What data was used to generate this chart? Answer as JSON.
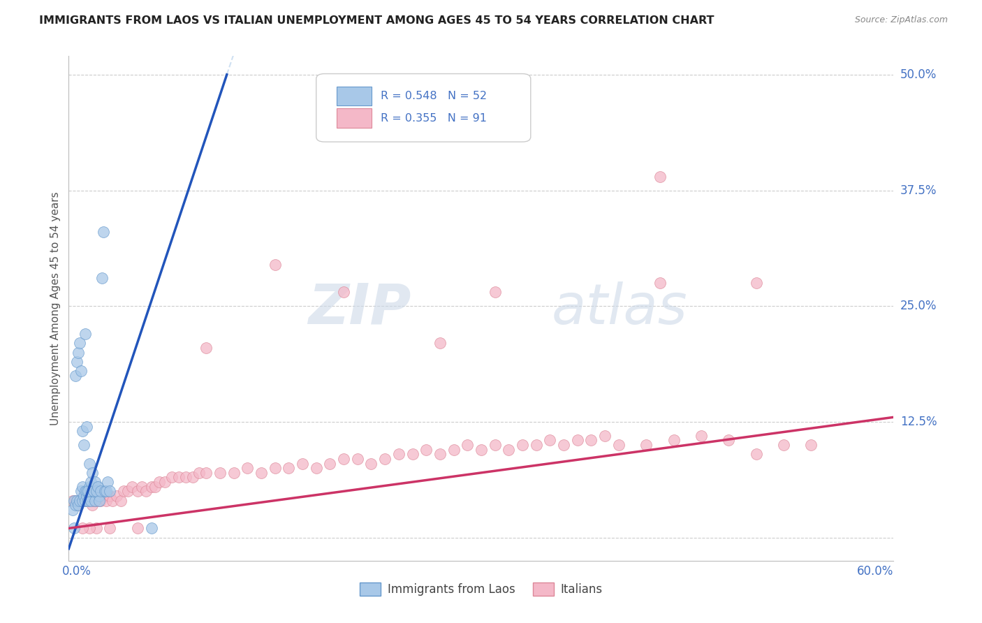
{
  "title": "IMMIGRANTS FROM LAOS VS ITALIAN UNEMPLOYMENT AMONG AGES 45 TO 54 YEARS CORRELATION CHART",
  "source": "Source: ZipAtlas.com",
  "ylabel": "Unemployment Among Ages 45 to 54 years",
  "xlim": [
    0.0,
    0.6
  ],
  "ylim": [
    -0.025,
    0.52
  ],
  "blue_color": "#a8c8e8",
  "blue_edge": "#6699cc",
  "pink_color": "#f4b8c8",
  "pink_edge": "#dd8899",
  "trend_blue": "#2255bb",
  "trend_pink": "#cc3366",
  "legend_R_blue": "R = 0.548",
  "legend_N_blue": "N = 52",
  "legend_R_pink": "R = 0.355",
  "legend_N_pink": "N = 91",
  "legend_label_blue": "Immigrants from Laos",
  "legend_label_pink": "Italians",
  "watermark_zip": "ZIP",
  "watermark_atlas": "atlas",
  "grid_color": "#cccccc",
  "background_color": "#ffffff",
  "ytick_vals": [
    0.0,
    0.125,
    0.25,
    0.375,
    0.5
  ],
  "ytick_labels": [
    "",
    "12.5%",
    "25.0%",
    "37.5%",
    "50.0%"
  ],
  "blue_x": [
    0.003,
    0.004,
    0.005,
    0.006,
    0.007,
    0.008,
    0.009,
    0.01,
    0.01,
    0.011,
    0.012,
    0.012,
    0.013,
    0.013,
    0.014,
    0.015,
    0.015,
    0.016,
    0.016,
    0.017,
    0.018,
    0.019,
    0.02,
    0.021,
    0.022,
    0.005,
    0.006,
    0.007,
    0.008,
    0.009,
    0.01,
    0.011,
    0.012,
    0.013,
    0.014,
    0.015,
    0.016,
    0.017,
    0.018,
    0.019,
    0.02,
    0.021,
    0.022,
    0.023,
    0.024,
    0.025,
    0.026,
    0.027,
    0.028,
    0.03,
    0.06,
    0.004
  ],
  "blue_y": [
    0.03,
    0.04,
    0.035,
    0.04,
    0.035,
    0.04,
    0.05,
    0.04,
    0.055,
    0.045,
    0.05,
    0.04,
    0.045,
    0.05,
    0.04,
    0.045,
    0.055,
    0.04,
    0.05,
    0.055,
    0.05,
    0.04,
    0.05,
    0.055,
    0.045,
    0.175,
    0.19,
    0.2,
    0.21,
    0.18,
    0.115,
    0.1,
    0.22,
    0.12,
    0.05,
    0.08,
    0.06,
    0.07,
    0.05,
    0.06,
    0.05,
    0.055,
    0.04,
    0.05,
    0.28,
    0.33,
    0.05,
    0.05,
    0.06,
    0.05,
    0.01,
    0.01
  ],
  "pink_x": [
    0.003,
    0.005,
    0.007,
    0.008,
    0.009,
    0.01,
    0.011,
    0.012,
    0.013,
    0.014,
    0.015,
    0.016,
    0.017,
    0.018,
    0.019,
    0.02,
    0.021,
    0.022,
    0.023,
    0.025,
    0.027,
    0.03,
    0.032,
    0.035,
    0.038,
    0.04,
    0.043,
    0.046,
    0.05,
    0.053,
    0.056,
    0.06,
    0.063,
    0.066,
    0.07,
    0.075,
    0.08,
    0.085,
    0.09,
    0.095,
    0.1,
    0.11,
    0.12,
    0.13,
    0.14,
    0.15,
    0.16,
    0.17,
    0.18,
    0.19,
    0.2,
    0.21,
    0.22,
    0.23,
    0.24,
    0.25,
    0.26,
    0.27,
    0.28,
    0.29,
    0.3,
    0.31,
    0.32,
    0.33,
    0.34,
    0.35,
    0.36,
    0.37,
    0.38,
    0.39,
    0.4,
    0.42,
    0.44,
    0.46,
    0.48,
    0.5,
    0.52,
    0.54,
    0.43,
    0.5,
    0.27,
    0.31,
    0.43,
    0.15,
    0.1,
    0.05,
    0.03,
    0.02,
    0.015,
    0.01,
    0.2
  ],
  "pink_y": [
    0.04,
    0.04,
    0.035,
    0.04,
    0.04,
    0.04,
    0.045,
    0.04,
    0.04,
    0.04,
    0.045,
    0.04,
    0.035,
    0.04,
    0.04,
    0.045,
    0.04,
    0.045,
    0.04,
    0.045,
    0.04,
    0.045,
    0.04,
    0.045,
    0.04,
    0.05,
    0.05,
    0.055,
    0.05,
    0.055,
    0.05,
    0.055,
    0.055,
    0.06,
    0.06,
    0.065,
    0.065,
    0.065,
    0.065,
    0.07,
    0.07,
    0.07,
    0.07,
    0.075,
    0.07,
    0.075,
    0.075,
    0.08,
    0.075,
    0.08,
    0.085,
    0.085,
    0.08,
    0.085,
    0.09,
    0.09,
    0.095,
    0.09,
    0.095,
    0.1,
    0.095,
    0.1,
    0.095,
    0.1,
    0.1,
    0.105,
    0.1,
    0.105,
    0.105,
    0.11,
    0.1,
    0.1,
    0.105,
    0.11,
    0.105,
    0.09,
    0.1,
    0.1,
    0.275,
    0.275,
    0.21,
    0.265,
    0.39,
    0.295,
    0.205,
    0.01,
    0.01,
    0.01,
    0.01,
    0.01,
    0.265
  ]
}
